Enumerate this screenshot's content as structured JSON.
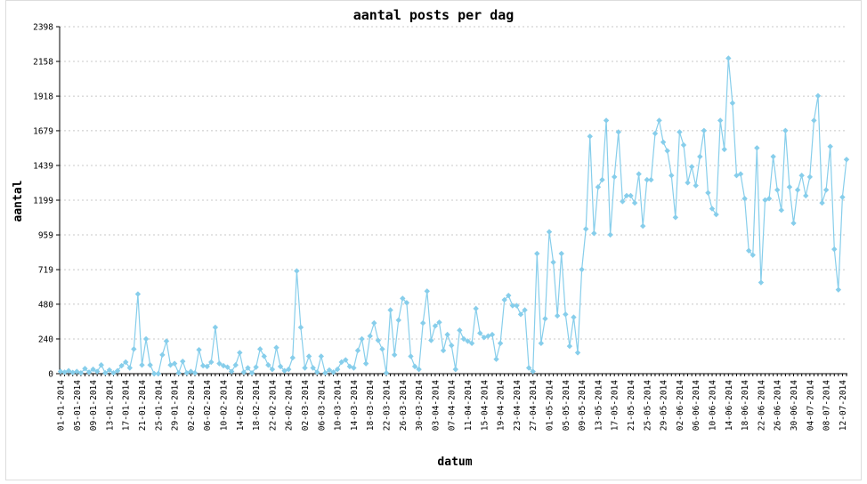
{
  "chart_data": {
    "type": "line",
    "title": "aantal posts per dag",
    "xlabel": "datum",
    "ylabel": "aantal",
    "start_date": "01-01-2014",
    "x_tick_labels": [
      "01-01-2014",
      "05-01-2014",
      "09-01-2014",
      "13-01-2014",
      "17-01-2014",
      "21-01-2014",
      "25-01-2014",
      "29-01-2014",
      "02-02-2014",
      "06-02-2014",
      "10-02-2014",
      "14-02-2014",
      "18-02-2014",
      "22-02-2014",
      "26-02-2014",
      "02-03-2014",
      "06-03-2014",
      "10-03-2014",
      "14-03-2014",
      "18-03-2014",
      "22-03-2014",
      "26-03-2014",
      "30-03-2014",
      "03-04-2014",
      "07-04-2014",
      "11-04-2014",
      "15-04-2014",
      "19-04-2014",
      "23-04-2014",
      "27-04-2014",
      "01-05-2014",
      "05-05-2014",
      "09-05-2014",
      "13-05-2014",
      "17-05-2014",
      "21-05-2014",
      "25-05-2014",
      "29-05-2014",
      "02-06-2014",
      "06-06-2014",
      "10-06-2014",
      "14-06-2014",
      "18-06-2014",
      "22-06-2014",
      "26-06-2014",
      "30-06-2014",
      "04-07-2014",
      "08-07-2014",
      "12-07-2014"
    ],
    "y_tick_labels": [
      "0",
      "240",
      "480",
      "719",
      "959",
      "1199",
      "1439",
      "1679",
      "1918",
      "2158",
      "2398"
    ],
    "ylim": [
      0,
      2398
    ],
    "grid": true,
    "legend": "none",
    "colors": {
      "series": "#87ceeb"
    },
    "series": [
      {
        "values": [
          15,
          10,
          20,
          8,
          15,
          5,
          35,
          10,
          30,
          15,
          60,
          5,
          25,
          5,
          20,
          55,
          80,
          40,
          170,
          550,
          60,
          240,
          60,
          0,
          0,
          130,
          225,
          60,
          70,
          5,
          85,
          5,
          15,
          5,
          165,
          55,
          50,
          80,
          320,
          70,
          55,
          45,
          15,
          60,
          145,
          10,
          40,
          5,
          45,
          170,
          120,
          60,
          30,
          180,
          50,
          20,
          30,
          110,
          710,
          320,
          40,
          120,
          40,
          10,
          120,
          5,
          25,
          10,
          30,
          80,
          95,
          50,
          40,
          160,
          240,
          70,
          260,
          350,
          230,
          170,
          5,
          440,
          130,
          370,
          520,
          490,
          120,
          50,
          30,
          350,
          570,
          230,
          330,
          355,
          160,
          270,
          195,
          30,
          300,
          240,
          225,
          210,
          450,
          280,
          250,
          260,
          270,
          100,
          210,
          510,
          540,
          470,
          470,
          410,
          440,
          40,
          15,
          830,
          210,
          380,
          980,
          770,
          400,
          830,
          410,
          190,
          390,
          145,
          720,
          1000,
          1640,
          970,
          1290,
          1340,
          1750,
          960,
          1360,
          1670,
          1190,
          1230,
          1230,
          1180,
          1380,
          1020,
          1340,
          1340,
          1660,
          1750,
          1600,
          1540,
          1370,
          1080,
          1670,
          1580,
          1320,
          1430,
          1300,
          1500,
          1680,
          1250,
          1140,
          1100,
          1750,
          1550,
          2180,
          1870,
          1370,
          1380,
          1210,
          850,
          820,
          1560,
          630,
          1200,
          1210,
          1500,
          1270,
          1130,
          1680,
          1290,
          1040,
          1270,
          1370,
          1230,
          1360,
          1750,
          1920,
          1180,
          1270,
          1570,
          860,
          580,
          1220,
          1480
        ]
      }
    ]
  }
}
